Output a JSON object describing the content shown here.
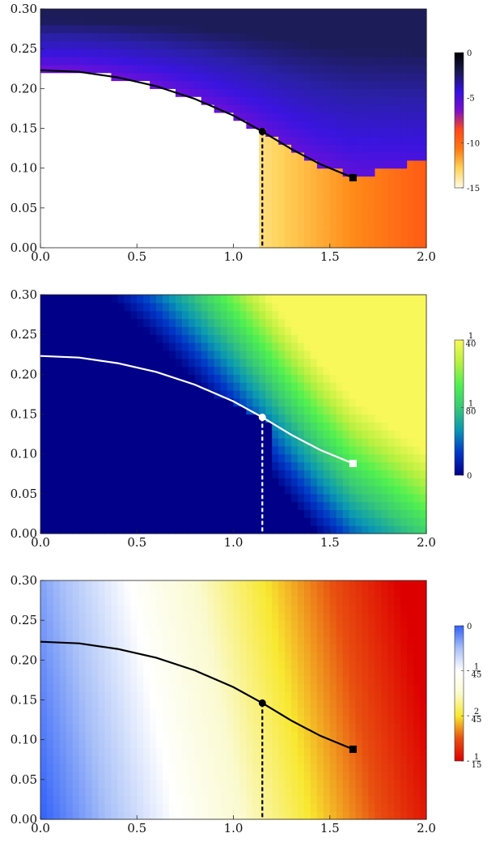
{
  "chart_data": [
    {
      "type": "heatmap",
      "title": "",
      "xlabel": "",
      "ylabel": "",
      "xlim": [
        0,
        2
      ],
      "ylim": [
        0,
        0.3
      ],
      "x_ticks": [
        "0.0",
        "0.5",
        "1.0",
        "1.5",
        "2.0"
      ],
      "y_ticks": [
        "0.00",
        "0.05",
        "0.10",
        "0.15",
        "0.20",
        "0.25",
        "0.30"
      ],
      "colorbar": {
        "range": [
          -15,
          0
        ],
        "ticks": [
          {
            "label": "0",
            "value": 0
          },
          {
            "label": "-5",
            "value": -5
          },
          {
            "label": "-10",
            "value": -10
          },
          {
            "label": "-15",
            "value": -15
          }
        ],
        "colors": [
          "#fffbe6",
          "#ffd35a",
          "#ff7a10",
          "#ff4a1a",
          "#7a10c8",
          "#3510e0",
          "#1a1a50",
          "#000000"
        ]
      },
      "curve_color": "#000000",
      "curve": {
        "x": [
          0.0,
          0.2,
          0.4,
          0.6,
          0.8,
          1.0,
          1.15,
          1.3,
          1.45,
          1.62
        ],
        "y": [
          0.223,
          0.221,
          0.214,
          0.203,
          0.187,
          0.166,
          0.146,
          0.124,
          0.105,
          0.088
        ]
      },
      "circle_point": {
        "x": 1.15,
        "y": 0.146
      },
      "square_point": {
        "x": 1.62,
        "y": 0.088
      },
      "dashed_line_x": 1.15
    },
    {
      "type": "heatmap",
      "title": "",
      "xlabel": "",
      "ylabel": "",
      "xlim": [
        0,
        2
      ],
      "ylim": [
        0,
        0.3
      ],
      "x_ticks": [
        "0.0",
        "0.5",
        "1.0",
        "1.5",
        "2.0"
      ],
      "y_ticks": [
        "0.00",
        "0.05",
        "0.10",
        "0.15",
        "0.20",
        "0.25",
        "0.30"
      ],
      "colorbar": {
        "range": [
          0,
          0.025
        ],
        "ticks": [
          {
            "label": "1/40",
            "num": "1",
            "den": "40",
            "value": 0.025
          },
          {
            "label": "1/80",
            "num": "1",
            "den": "80",
            "value": 0.0125
          },
          {
            "label": "0",
            "value": 0
          }
        ],
        "colors": [
          "#000088",
          "#0038c8",
          "#0a96b4",
          "#38c878",
          "#50f050",
          "#b8f040",
          "#f8f85a"
        ]
      },
      "curve_color": "#ffffff",
      "curve": {
        "x": [
          0.0,
          0.2,
          0.4,
          0.6,
          0.8,
          1.0,
          1.15,
          1.3,
          1.45,
          1.62
        ],
        "y": [
          0.223,
          0.221,
          0.214,
          0.203,
          0.187,
          0.166,
          0.146,
          0.124,
          0.105,
          0.088
        ]
      },
      "circle_point": {
        "x": 1.15,
        "y": 0.146
      },
      "square_point": {
        "x": 1.62,
        "y": 0.088
      },
      "dashed_line_x": 1.15
    },
    {
      "type": "heatmap",
      "title": "",
      "xlabel": "",
      "ylabel": "",
      "xlim": [
        0,
        2
      ],
      "ylim": [
        0,
        0.3
      ],
      "x_ticks": [
        "0.0",
        "0.5",
        "1.0",
        "1.5",
        "2.0"
      ],
      "y_ticks": [
        "0.00",
        "0.05",
        "0.10",
        "0.15",
        "0.20",
        "0.25",
        "0.30"
      ],
      "colorbar": {
        "range": [
          -0.0667,
          0
        ],
        "ticks": [
          {
            "label": "0",
            "value": 0
          },
          {
            "label": "-1/45",
            "sign": "-",
            "num": "1",
            "den": "45",
            "value": -0.0222
          },
          {
            "label": "-2/45",
            "sign": "-",
            "num": "2",
            "den": "45",
            "value": -0.0444
          },
          {
            "label": "-1/15",
            "sign": "-",
            "num": "1",
            "den": "15",
            "value": -0.0667
          }
        ],
        "colors": [
          "#dd0000",
          "#e85010",
          "#f8e830",
          "#fafad0",
          "#ffffff",
          "#a8c0f8",
          "#3060f8"
        ]
      },
      "curve_color": "#000000",
      "curve": {
        "x": [
          0.0,
          0.2,
          0.4,
          0.6,
          0.8,
          1.0,
          1.15,
          1.3,
          1.45,
          1.62
        ],
        "y": [
          0.223,
          0.221,
          0.214,
          0.203,
          0.187,
          0.166,
          0.146,
          0.124,
          0.105,
          0.088
        ]
      },
      "circle_point": {
        "x": 1.15,
        "y": 0.146
      },
      "square_point": {
        "x": 1.62,
        "y": 0.088
      },
      "dashed_line_x": 1.15
    }
  ]
}
